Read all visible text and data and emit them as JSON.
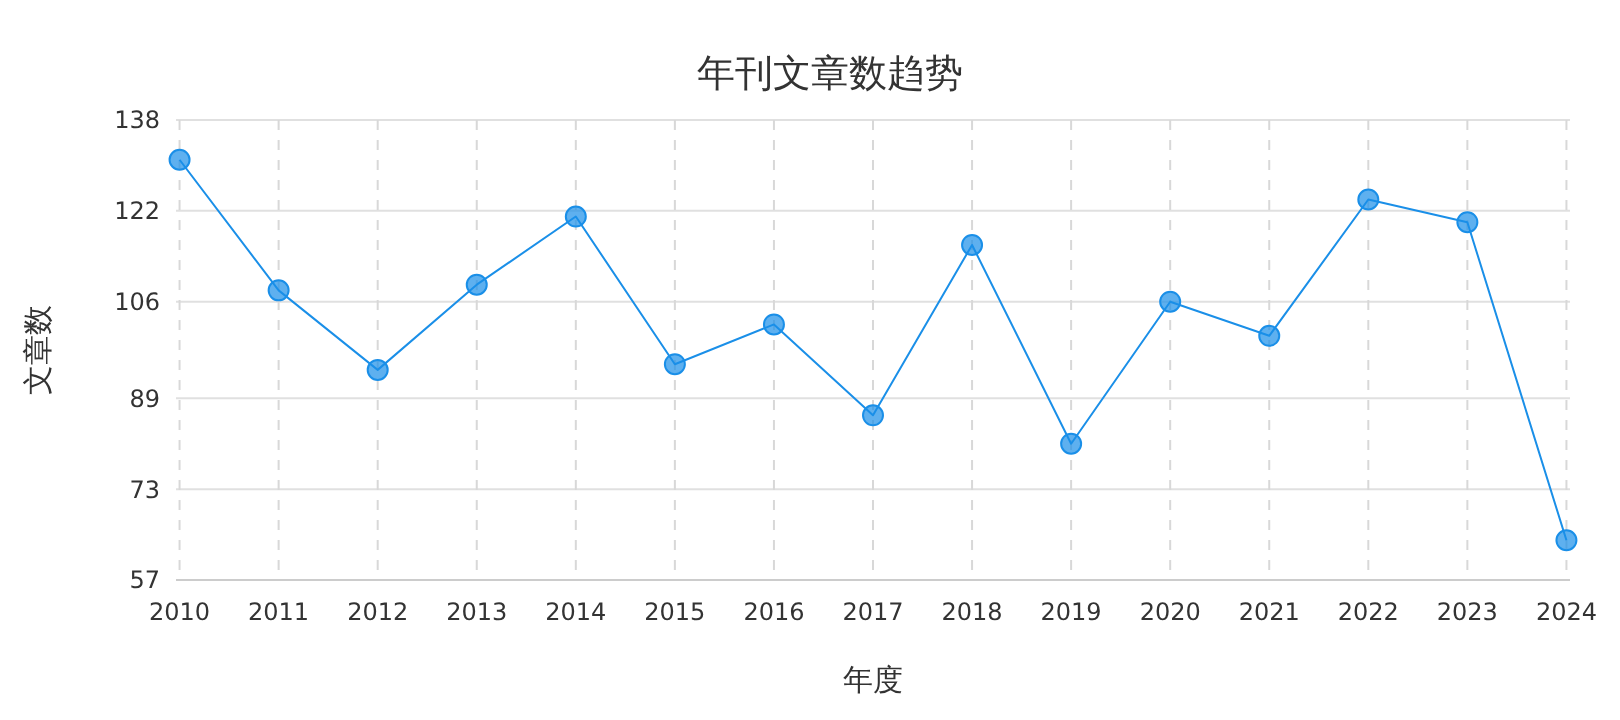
{
  "chart_data": {
    "type": "line",
    "title": "年刊文章数趋势",
    "xlabel": "年度",
    "ylabel": "文章数",
    "categories": [
      "2010",
      "2011",
      "2012",
      "2013",
      "2014",
      "2015",
      "2016",
      "2017",
      "2018",
      "2019",
      "2020",
      "2021",
      "2022",
      "2023",
      "2024"
    ],
    "series": [
      {
        "color": "#1a8fe8",
        "values": [
          131,
          108,
          94,
          109,
          121,
          95,
          102,
          86,
          116,
          81,
          106,
          100,
          124,
          120,
          64
        ]
      }
    ],
    "ylim": [
      57,
      138
    ],
    "yticks": [
      57,
      73,
      89,
      106,
      122,
      138
    ],
    "grid": true,
    "marker": "circle",
    "line_style": "solid"
  }
}
